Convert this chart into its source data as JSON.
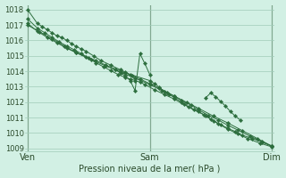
{
  "title": "Pression niveau de la mer( hPa )",
  "background_color": "#d2f0e4",
  "plot_bg_color": "#d2f0e4",
  "grid_color": "#a0ccb8",
  "line_color": "#2d6e3e",
  "vline_color": "#3a5a3a",
  "ylim": [
    1008.8,
    1018.3
  ],
  "yticks": [
    1009,
    1010,
    1011,
    1012,
    1013,
    1014,
    1015,
    1016,
    1017,
    1018
  ],
  "xtick_labels": [
    "Ven",
    "Sam",
    "Dim"
  ],
  "xtick_positions": [
    0.0,
    0.5,
    1.0
  ],
  "series": [
    {
      "x": [
        0.0,
        0.04,
        0.06,
        0.08,
        0.1,
        0.12,
        0.14,
        0.16,
        0.18,
        0.2,
        0.22,
        0.24,
        0.27,
        0.3,
        0.34,
        0.38,
        0.4,
        0.42,
        0.5,
        0.52,
        0.54,
        0.56,
        0.58,
        0.6,
        0.63,
        0.66,
        0.7,
        0.73,
        0.76,
        0.79,
        0.82,
        0.85,
        0.88,
        0.92,
        0.96,
        1.0
      ],
      "y": [
        1018.0,
        1017.1,
        1016.9,
        1016.7,
        1016.5,
        1016.3,
        1016.2,
        1016.0,
        1015.8,
        1015.6,
        1015.45,
        1015.3,
        1015.0,
        1014.7,
        1014.4,
        1014.1,
        1013.95,
        1013.8,
        1013.4,
        1013.2,
        1012.95,
        1012.7,
        1012.5,
        1012.3,
        1012.0,
        1011.7,
        1011.4,
        1011.1,
        1010.8,
        1010.55,
        1010.3,
        1010.1,
        1009.85,
        1009.65,
        1009.4,
        1009.15
      ]
    },
    {
      "x": [
        0.0,
        0.04,
        0.07,
        0.1,
        0.13,
        0.16,
        0.19,
        0.22,
        0.25,
        0.28,
        0.31,
        0.34,
        0.37,
        0.4,
        0.42,
        0.44,
        0.46,
        0.48,
        0.52,
        0.56,
        0.6,
        0.64,
        0.68,
        0.72,
        0.75,
        0.78,
        0.82,
        0.86,
        0.9,
        0.95,
        1.0
      ],
      "y": [
        1017.4,
        1016.8,
        1016.5,
        1016.2,
        1015.9,
        1015.65,
        1015.4,
        1015.15,
        1014.85,
        1014.55,
        1014.3,
        1014.05,
        1013.8,
        1013.6,
        1013.5,
        1013.4,
        1013.3,
        1013.15,
        1012.8,
        1012.5,
        1012.2,
        1011.85,
        1011.5,
        1011.2,
        1010.9,
        1010.6,
        1010.25,
        1009.95,
        1009.65,
        1009.35,
        1009.1
      ]
    },
    {
      "x": [
        0.0,
        0.04,
        0.08,
        0.12,
        0.16,
        0.2,
        0.24,
        0.28,
        0.32,
        0.36,
        0.4,
        0.43,
        0.46,
        0.5,
        0.54,
        0.57,
        0.6,
        0.63,
        0.67,
        0.7,
        0.74,
        0.78,
        0.82,
        0.86,
        0.91,
        0.96,
        1.0
      ],
      "y": [
        1017.1,
        1016.6,
        1016.2,
        1015.85,
        1015.5,
        1015.2,
        1014.95,
        1014.7,
        1014.4,
        1014.15,
        1013.9,
        1013.7,
        1013.5,
        1013.2,
        1012.9,
        1012.65,
        1012.4,
        1012.1,
        1011.8,
        1011.5,
        1011.15,
        1010.85,
        1010.5,
        1010.2,
        1009.8,
        1009.45,
        1009.15
      ]
    },
    {
      "x": [
        0.0,
        0.05,
        0.1,
        0.15,
        0.2,
        0.26,
        0.32,
        0.38,
        0.44,
        0.5,
        0.55,
        0.6,
        0.65,
        0.7,
        0.76,
        0.82,
        0.88,
        0.94,
        1.0
      ],
      "y": [
        1017.0,
        1016.55,
        1016.1,
        1015.65,
        1015.2,
        1014.75,
        1014.35,
        1013.95,
        1013.55,
        1013.15,
        1012.75,
        1012.4,
        1012.0,
        1011.6,
        1011.1,
        1010.65,
        1010.15,
        1009.65,
        1009.15
      ]
    }
  ],
  "spike": {
    "x": [
      0.36,
      0.38,
      0.4,
      0.42,
      0.44,
      0.46,
      0.48,
      0.5
    ],
    "y": [
      1014.1,
      1013.9,
      1013.7,
      1013.4,
      1012.75,
      1015.15,
      1014.5,
      1013.8
    ]
  },
  "bump": {
    "x": [
      0.73,
      0.75,
      0.77,
      0.79,
      0.81,
      0.83,
      0.85,
      0.87
    ],
    "y": [
      1012.3,
      1012.6,
      1012.35,
      1012.05,
      1011.75,
      1011.4,
      1011.1,
      1010.85
    ]
  }
}
